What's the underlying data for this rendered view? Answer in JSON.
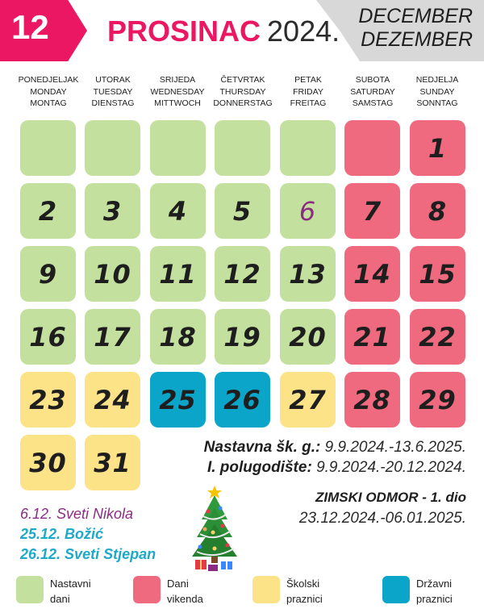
{
  "header": {
    "month_number": "12",
    "month_name": "PROSINAC",
    "year": "2024.",
    "english_month": "DECEMBER",
    "german_month": "DEZEMBER",
    "accent_color": "#ec1763"
  },
  "weekdays": [
    {
      "hr": "PONEDJELJAK",
      "en": "MONDAY",
      "de": "MONTAG"
    },
    {
      "hr": "UTORAK",
      "en": "TUESDAY",
      "de": "DIENSTAG"
    },
    {
      "hr": "SRIJEDA",
      "en": "WEDNESDAY",
      "de": "MITTWOCH"
    },
    {
      "hr": "ČETVRTAK",
      "en": "THURSDAY",
      "de": "DONNERSTAG"
    },
    {
      "hr": "PETAK",
      "en": "FRIDAY",
      "de": "FREITAG"
    },
    {
      "hr": "SUBOTA",
      "en": "SATURDAY",
      "de": "SAMSTAG"
    },
    {
      "hr": "NEDJELJA",
      "en": "SUNDAY",
      "de": "SONNTAG"
    }
  ],
  "weeks": [
    [
      {
        "day": "",
        "type": "school"
      },
      {
        "day": "",
        "type": "school"
      },
      {
        "day": "",
        "type": "school"
      },
      {
        "day": "",
        "type": "school"
      },
      {
        "day": "",
        "type": "school"
      },
      {
        "day": "",
        "type": "weekend"
      },
      {
        "day": "1",
        "type": "weekend"
      }
    ],
    [
      {
        "day": "2",
        "type": "school"
      },
      {
        "day": "3",
        "type": "school"
      },
      {
        "day": "4",
        "type": "school"
      },
      {
        "day": "5",
        "type": "school"
      },
      {
        "day": "6",
        "type": "school",
        "marked": true
      },
      {
        "day": "7",
        "type": "weekend"
      },
      {
        "day": "8",
        "type": "weekend"
      }
    ],
    [
      {
        "day": "9",
        "type": "school"
      },
      {
        "day": "10",
        "type": "school"
      },
      {
        "day": "11",
        "type": "school"
      },
      {
        "day": "12",
        "type": "school"
      },
      {
        "day": "13",
        "type": "school"
      },
      {
        "day": "14",
        "type": "weekend"
      },
      {
        "day": "15",
        "type": "weekend"
      }
    ],
    [
      {
        "day": "16",
        "type": "school"
      },
      {
        "day": "17",
        "type": "school"
      },
      {
        "day": "18",
        "type": "school"
      },
      {
        "day": "19",
        "type": "school"
      },
      {
        "day": "20",
        "type": "school"
      },
      {
        "day": "21",
        "type": "weekend"
      },
      {
        "day": "22",
        "type": "weekend"
      }
    ],
    [
      {
        "day": "23",
        "type": "school_holiday"
      },
      {
        "day": "24",
        "type": "school_holiday"
      },
      {
        "day": "25",
        "type": "state_holiday"
      },
      {
        "day": "26",
        "type": "state_holiday"
      },
      {
        "day": "27",
        "type": "school_holiday"
      },
      {
        "day": "28",
        "type": "weekend"
      },
      {
        "day": "29",
        "type": "weekend"
      }
    ],
    [
      {
        "day": "30",
        "type": "school_holiday"
      },
      {
        "day": "31",
        "type": "school_holiday"
      }
    ]
  ],
  "info": {
    "school_year_label": "Nastavna šk. g.:",
    "school_year_value": "9.9.2024.-13.6.2025.",
    "semester_label": "I. polugodište:",
    "semester_value": "9.9.2024.-20.12.2024.",
    "winter_break_title": "ZIMSKI ODMOR - 1. dio",
    "winter_break_dates": "23.12.2024.-06.01.2025."
  },
  "holidays": [
    {
      "text": "6.12. Sveti Nikola",
      "color": "#8a2d82"
    },
    {
      "text": "25.12. Božić",
      "color": "#1fa9c9"
    },
    {
      "text": "26.12. Sveti Stjepan",
      "color": "#1fa9c9"
    }
  ],
  "tree_icon": "christmas-tree-icon",
  "legend": [
    {
      "line1": "Nastavni",
      "line2": "dani",
      "color": "#c4e09e"
    },
    {
      "line1": "Dani",
      "line2": "vikenda",
      "color": "#ef6a7f"
    },
    {
      "line1": "Školski",
      "line2": "praznici",
      "color": "#fde388"
    },
    {
      "line1": "Državni",
      "line2": "praznici",
      "color": "#0aa5c8"
    }
  ]
}
